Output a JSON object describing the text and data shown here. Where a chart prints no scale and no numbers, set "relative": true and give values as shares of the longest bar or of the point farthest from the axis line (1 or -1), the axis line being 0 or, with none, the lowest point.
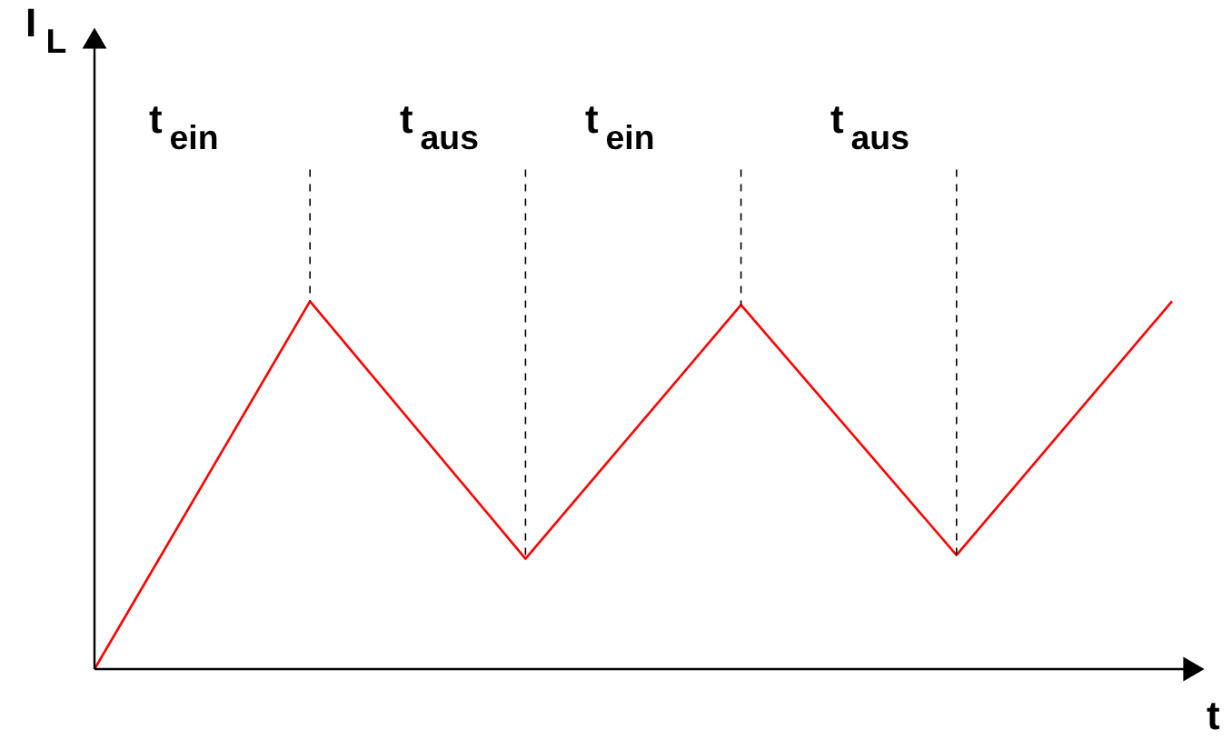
{
  "chart_data": {
    "type": "line",
    "relative": true,
    "xlabel": "t",
    "categories": [
      null,
      null,
      null,
      null,
      null,
      null
    ],
    "series": [
      {
        "color": "#ff0000",
        "values": [
          0,
          1,
          0.3,
          0.99,
          0.31,
          1
        ]
      }
    ],
    "annotations": [
      "I$_{L}$",
      "t$_{ein}$",
      "t$_{aus}$",
      "t$_{ein}$",
      "t$_{aus}$"
    ],
    "grid": false,
    "marker": "none",
    "line_style": "solid"
  }
}
